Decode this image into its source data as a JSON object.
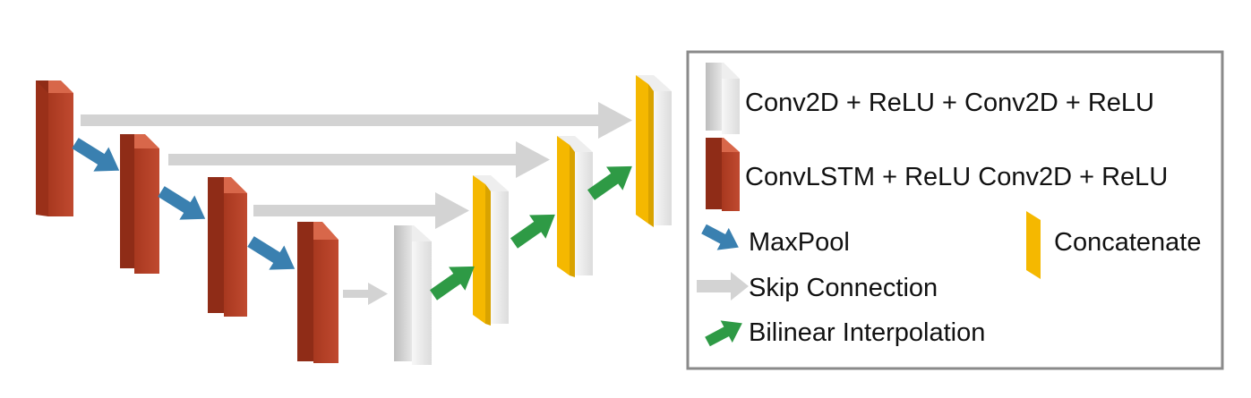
{
  "legend": {
    "items": [
      {
        "key": "conv-block",
        "label": "Conv2D + ReLU + Conv2D + ReLU"
      },
      {
        "key": "convlstm-block",
        "label": "ConvLSTM + ReLU Conv2D + ReLU"
      },
      {
        "key": "maxpool-arrow",
        "label": "MaxPool"
      },
      {
        "key": "concat-block",
        "label": "Concatenate"
      },
      {
        "key": "skip-arrow",
        "label": "Skip Connection"
      },
      {
        "key": "bilinear-arrow",
        "label": "Bilinear Interpolation"
      }
    ]
  },
  "colors": {
    "convlstm": "#b8412a",
    "conv": "#f2f2f2",
    "concat": "#f5b800",
    "maxpool": "#3a80b0",
    "skip": "#d0d0d0",
    "bilinear": "#2e9a45",
    "border": "#8a8a8a"
  }
}
